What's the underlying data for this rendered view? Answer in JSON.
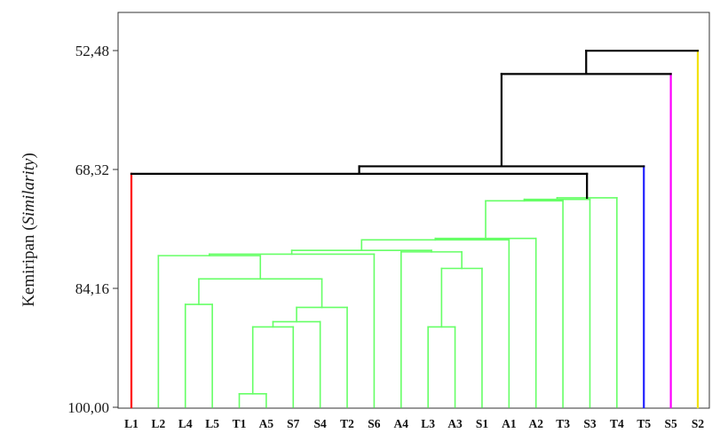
{
  "chart_data": {
    "type": "dendrogram",
    "ylabel": {
      "main": "Kemiripan (",
      "italic": "Similarity",
      "close": ")"
    },
    "yticks": [
      "52,48",
      "68,32",
      "84,16",
      "100,00"
    ],
    "ylim": [
      100,
      48
    ],
    "leaves": [
      "L1",
      "L2",
      "L4",
      "L5",
      "T1",
      "A5",
      "S7",
      "S4",
      "T2",
      "S6",
      "A4",
      "L3",
      "A3",
      "S1",
      "A1",
      "A2",
      "T3",
      "S3",
      "T4",
      "T5",
      "S5",
      "S2"
    ],
    "cluster_colors": {
      "red": "#ff0000",
      "green": "#66ff66",
      "black": "#000000",
      "blue": "#1f1fff",
      "magenta": "#ff00ff",
      "yellow": "#f2e200"
    },
    "merges": [
      {
        "id": "m1",
        "left": "T1",
        "right": "A5",
        "height": 98.2,
        "color": "green"
      },
      {
        "id": "m2",
        "left": "m1",
        "right": "S7",
        "height": 89.3,
        "color": "green"
      },
      {
        "id": "m3",
        "left": "m2",
        "right": "S4",
        "height": 88.6,
        "color": "green"
      },
      {
        "id": "m4",
        "left": "m3",
        "right": "T2",
        "height": 86.7,
        "color": "green"
      },
      {
        "id": "m5",
        "left": "L4",
        "right": "L5",
        "height": 86.3,
        "color": "green"
      },
      {
        "id": "m6",
        "left": "m5",
        "right": "m4",
        "height": 82.9,
        "color": "green"
      },
      {
        "id": "m7",
        "left": "L2",
        "right": "m6",
        "height": 79.8,
        "color": "green"
      },
      {
        "id": "m8",
        "left": "m7",
        "right": "S6",
        "height": 79.6,
        "color": "green"
      },
      {
        "id": "m9",
        "left": "L3",
        "right": "A3",
        "height": 89.3,
        "color": "green"
      },
      {
        "id": "m10",
        "left": "m9",
        "right": "S1",
        "height": 81.5,
        "color": "green"
      },
      {
        "id": "m11",
        "left": "A4",
        "right": "m10",
        "height": 79.3,
        "color": "green"
      },
      {
        "id": "m12",
        "left": "m8",
        "right": "m11",
        "height": 79.1,
        "color": "green"
      },
      {
        "id": "m13",
        "left": "m12",
        "right": "A1",
        "height": 77.7,
        "color": "green"
      },
      {
        "id": "m14",
        "left": "m13",
        "right": "A2",
        "height": 77.5,
        "color": "green"
      },
      {
        "id": "m15",
        "left": "m14",
        "right": "T3",
        "height": 72.5,
        "color": "green"
      },
      {
        "id": "m16",
        "left": "m15",
        "right": "S3",
        "height": 72.3,
        "color": "green"
      },
      {
        "id": "m17",
        "left": "m16",
        "right": "T4",
        "height": 72.1,
        "color": "green"
      },
      {
        "id": "m18",
        "left": "L1",
        "right": "m17",
        "height": 68.9,
        "color": "black"
      },
      {
        "id": "m19",
        "left": "m18",
        "right": "T5",
        "height": 67.9,
        "color": "black"
      },
      {
        "id": "m20",
        "left": "m19",
        "right": "S5",
        "height": 55.6,
        "color": "black"
      },
      {
        "id": "m21",
        "left": "m20",
        "right": "S2",
        "height": 52.5,
        "color": "black"
      }
    ],
    "leaf_colors": {
      "L1": "red",
      "T5": "blue",
      "S5": "magenta",
      "S2": "yellow"
    }
  }
}
